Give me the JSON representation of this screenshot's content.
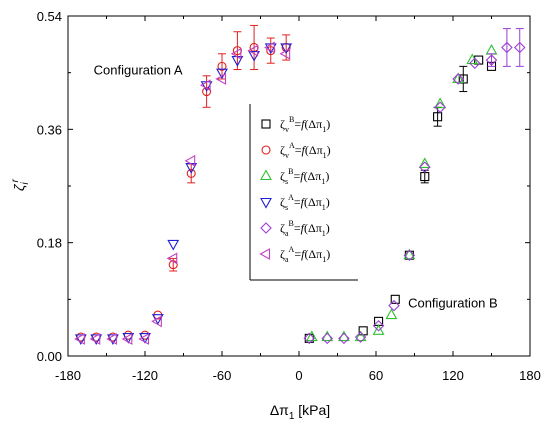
{
  "chart_data": {
    "type": "scatter",
    "title": "",
    "xlabel": "Δπ1 [kPa]",
    "xlabel_parts": {
      "main": "Δπ",
      "sub": "1",
      "unit": " [kPa]"
    },
    "ylabel": "ζi r",
    "ylabel_parts": {
      "main": "ζ",
      "sub": "i",
      "sup": "r"
    },
    "xlim": [
      -180,
      180
    ],
    "ylim": [
      0.0,
      0.54
    ],
    "xticks": [
      -180,
      -120,
      -60,
      0,
      60,
      120,
      180
    ],
    "yticks": [
      0.0,
      0.18,
      0.36,
      0.54
    ],
    "ytick_labels": [
      "0.00",
      "0.18",
      "0.36",
      "0.54"
    ],
    "grid": false,
    "legend_position": "center-right",
    "annotations": [
      {
        "text": "Configuration A",
        "x": -160,
        "y": 0.447
      },
      {
        "text": "Configuration B",
        "x": 85,
        "y": 0.077
      }
    ],
    "series": [
      {
        "name": "ζv B = f(Δπ1)",
        "legend": {
          "sym": "ζ",
          "sub": "v",
          "sup": "B",
          "mid": "=",
          "fn": "f",
          "arg": "(Δπ",
          "argsub": "1",
          "close": ")"
        },
        "marker": "square",
        "color": "#000000",
        "points": [
          [
            8,
            0.028
          ],
          [
            50,
            0.04
          ],
          [
            62,
            0.055
          ],
          [
            75,
            0.09
          ],
          [
            86,
            0.16
          ],
          [
            98,
            0.285
          ],
          [
            108,
            0.38
          ],
          [
            128,
            0.44
          ],
          [
            140,
            0.47
          ],
          [
            150,
            0.46
          ]
        ],
        "errors": [
          0,
          0,
          0,
          0,
          0,
          0.01,
          0.015,
          0.02,
          0,
          0
        ]
      },
      {
        "name": "ζv A = f(Δπ1)",
        "legend": {
          "sym": "ζ",
          "sub": "v",
          "sup": "A",
          "mid": "=",
          "fn": "f",
          "arg": "(Δπ",
          "argsub": "1",
          "close": ")"
        },
        "marker": "circle",
        "color": "#e02020",
        "points": [
          [
            -170,
            0.03
          ],
          [
            -158,
            0.03
          ],
          [
            -145,
            0.03
          ],
          [
            -133,
            0.033
          ],
          [
            -120,
            0.033
          ],
          [
            -110,
            0.065
          ],
          [
            -98,
            0.145
          ],
          [
            -84,
            0.29
          ],
          [
            -72,
            0.42
          ],
          [
            -60,
            0.46
          ],
          [
            -48,
            0.485
          ],
          [
            -35,
            0.49
          ],
          [
            -22,
            0.485
          ],
          [
            -10,
            0.49
          ]
        ],
        "errors": [
          0,
          0,
          0,
          0,
          0,
          0,
          0.01,
          0.015,
          0.025,
          0.02,
          0.03,
          0.035,
          0.02,
          0.02
        ]
      },
      {
        "name": "ζs B = f(Δπ1)",
        "legend": {
          "sym": "ζ",
          "sub": "s",
          "sup": "B",
          "mid": "=",
          "fn": "f",
          "arg": "(Δπ",
          "argsub": "1",
          "close": ")"
        },
        "marker": "triangle-up",
        "color": "#30c030",
        "points": [
          [
            10,
            0.03
          ],
          [
            22,
            0.03
          ],
          [
            35,
            0.03
          ],
          [
            48,
            0.03
          ],
          [
            62,
            0.04
          ],
          [
            72,
            0.065
          ],
          [
            86,
            0.16
          ],
          [
            98,
            0.305
          ],
          [
            110,
            0.4
          ],
          [
            124,
            0.44
          ],
          [
            135,
            0.47
          ],
          [
            150,
            0.485
          ]
        ],
        "errors": [
          0,
          0,
          0,
          0,
          0,
          0,
          0,
          0,
          0,
          0,
          0,
          0
        ]
      },
      {
        "name": "ζs A = f(Δπ1)",
        "legend": {
          "sym": "ζ",
          "sub": "s",
          "sup": "A",
          "mid": "=",
          "fn": "f",
          "arg": "(Δπ",
          "argsub": "1",
          "close": ")"
        },
        "marker": "triangle-down",
        "color": "#2020d0",
        "points": [
          [
            -170,
            0.028
          ],
          [
            -158,
            0.028
          ],
          [
            -145,
            0.028
          ],
          [
            -133,
            0.03
          ],
          [
            -120,
            0.03
          ],
          [
            -110,
            0.06
          ],
          [
            -98,
            0.178
          ],
          [
            -84,
            0.3
          ],
          [
            -72,
            0.43
          ],
          [
            -60,
            0.45
          ],
          [
            -48,
            0.47
          ],
          [
            -35,
            0.478
          ],
          [
            -22,
            0.49
          ],
          [
            -10,
            0.49
          ]
        ],
        "errors": [
          0,
          0,
          0,
          0,
          0,
          0,
          0,
          0,
          0,
          0,
          0,
          0,
          0,
          0
        ]
      },
      {
        "name": "ζa B = f(Δπ1)",
        "legend": {
          "sym": "ζ",
          "sub": "a",
          "sup": "B",
          "mid": "=",
          "fn": "f",
          "arg": "(Δπ",
          "argsub": "1",
          "close": ")"
        },
        "marker": "diamond",
        "color": "#9a3fd0",
        "points": [
          [
            8,
            0.028
          ],
          [
            22,
            0.028
          ],
          [
            35,
            0.028
          ],
          [
            48,
            0.03
          ],
          [
            62,
            0.048
          ],
          [
            74,
            0.08
          ],
          [
            86,
            0.16
          ],
          [
            98,
            0.3
          ],
          [
            110,
            0.395
          ],
          [
            124,
            0.44
          ],
          [
            137,
            0.465
          ],
          [
            150,
            0.47
          ],
          [
            162,
            0.49
          ],
          [
            172,
            0.49
          ]
        ],
        "errors": [
          0,
          0,
          0,
          0,
          0,
          0,
          0,
          0,
          0,
          0,
          0,
          0.01,
          0.03,
          0.03
        ]
      },
      {
        "name": "ζa A = f(Δπ1)",
        "legend": {
          "sym": "ζ",
          "sub": "a",
          "sup": "A",
          "mid": "=",
          "fn": "f",
          "arg": "(Δπ",
          "argsub": "1",
          "close": ")"
        },
        "marker": "triangle-left",
        "color": "#c040c0",
        "points": [
          [
            -170,
            0.027
          ],
          [
            -158,
            0.027
          ],
          [
            -145,
            0.027
          ],
          [
            -133,
            0.027
          ],
          [
            -120,
            0.027
          ],
          [
            -110,
            0.055
          ],
          [
            -98,
            0.155
          ],
          [
            -84,
            0.31
          ],
          [
            -72,
            0.43
          ],
          [
            -60,
            0.44
          ],
          [
            -48,
            0.48
          ],
          [
            -35,
            0.485
          ],
          [
            -22,
            0.49
          ],
          [
            -10,
            0.48
          ]
        ],
        "errors": [
          0,
          0,
          0,
          0,
          0,
          0,
          0,
          0,
          0,
          0,
          0,
          0,
          0,
          0
        ]
      }
    ]
  }
}
